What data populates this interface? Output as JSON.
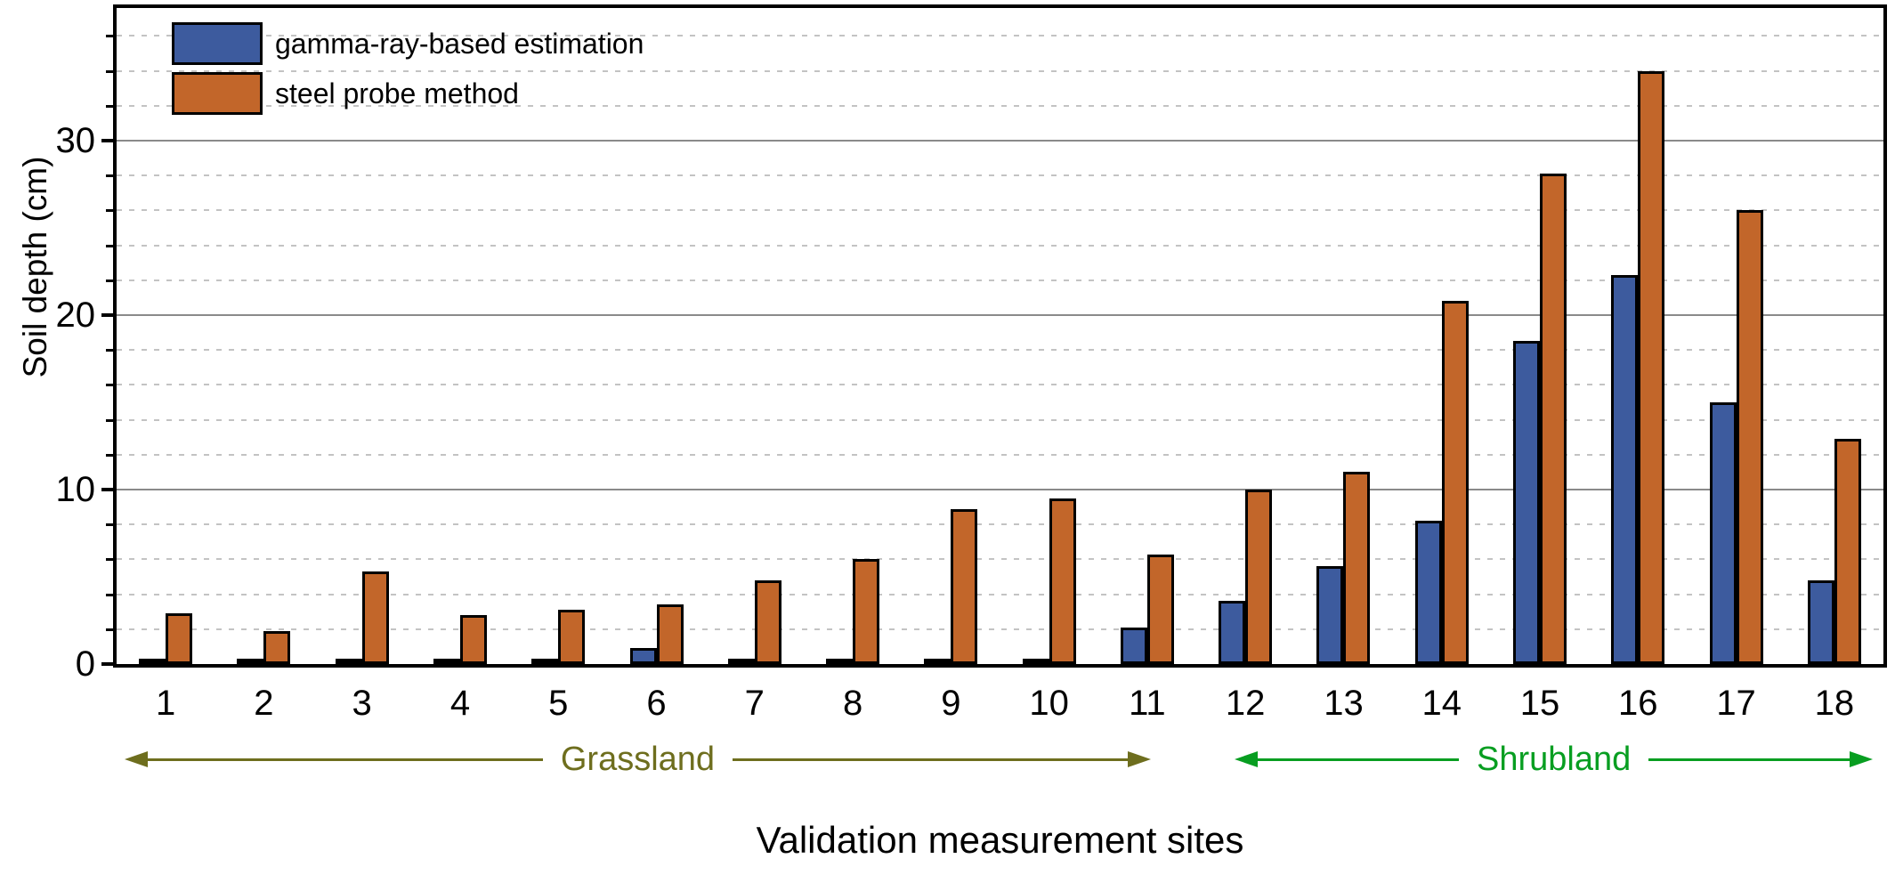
{
  "chart_data": {
    "type": "bar",
    "title": "",
    "xlabel": "Validation measurement sites",
    "ylabel": "Soil depth (cm)",
    "categories": [
      "1",
      "2",
      "3",
      "4",
      "5",
      "6",
      "7",
      "8",
      "9",
      "10",
      "11",
      "12",
      "13",
      "14",
      "15",
      "16",
      "17",
      "18"
    ],
    "series": [
      {
        "name": "gamma-ray-based estimation",
        "color": "#3d5b9e",
        "values": [
          0.1,
          0.1,
          0.3,
          0.3,
          0.2,
          0.9,
          0.1,
          0.2,
          0.1,
          0.2,
          2.1,
          3.6,
          5.6,
          8.2,
          18.5,
          22.3,
          15.0,
          4.8
        ]
      },
      {
        "name": "steel probe method",
        "color": "#c2662a",
        "values": [
          2.9,
          1.9,
          5.3,
          2.8,
          3.1,
          3.4,
          4.8,
          6.0,
          8.9,
          9.5,
          6.3,
          10.0,
          11.0,
          20.8,
          28.1,
          34.0,
          26.0,
          12.9
        ]
      }
    ],
    "ylim": [
      0,
      37.6
    ],
    "yticks_major": [
      0,
      10,
      20,
      30
    ],
    "ytick_minor_step": 2,
    "grid": {
      "solid_at": [
        10,
        20,
        30
      ],
      "dotted_step": 2,
      "solid_color": "#8a8a8a",
      "dotted_color": "#c3c3c3"
    },
    "legend_position": "top-left-inside",
    "groups": [
      {
        "label": "Grassland",
        "sites": [
          1,
          11
        ],
        "color": "#6e6e1e"
      },
      {
        "label": "Shrubland",
        "sites": [
          12,
          18
        ],
        "color": "#089e21"
      }
    ]
  }
}
